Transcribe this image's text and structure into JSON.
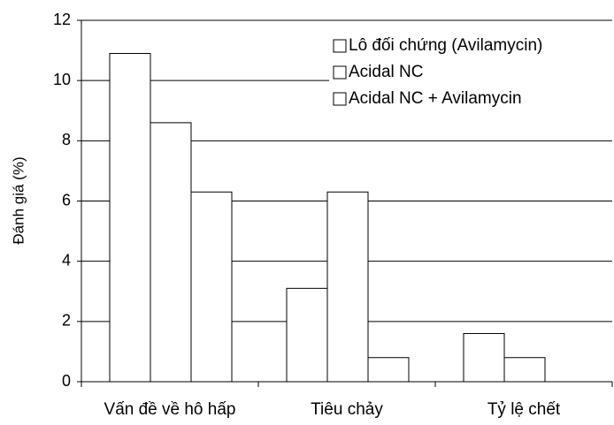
{
  "chart_data": {
    "type": "bar",
    "categories": [
      "Vấn đề về hô hấp",
      "Tiêu chảy",
      "Tỷ lệ chết"
    ],
    "series": [
      {
        "name": "Lô đối chứng (Avilamycin)",
        "values": [
          10.9,
          3.1,
          1.6
        ]
      },
      {
        "name": "Acidal NC",
        "values": [
          8.6,
          6.3,
          0.8
        ]
      },
      {
        "name": "Acidal NC + Avilamycin",
        "values": [
          6.3,
          0.8,
          0
        ]
      }
    ],
    "ylabel": "Đánh giá (%)",
    "xlabel": "",
    "ylim": [
      0,
      12
    ],
    "yticks": [
      0,
      2,
      4,
      6,
      8,
      10,
      12
    ],
    "grid": true,
    "legend": "top-right",
    "colors": {
      "bar_fill": "#ffffff",
      "bar_stroke": "#000000",
      "grid": "#000000"
    }
  }
}
